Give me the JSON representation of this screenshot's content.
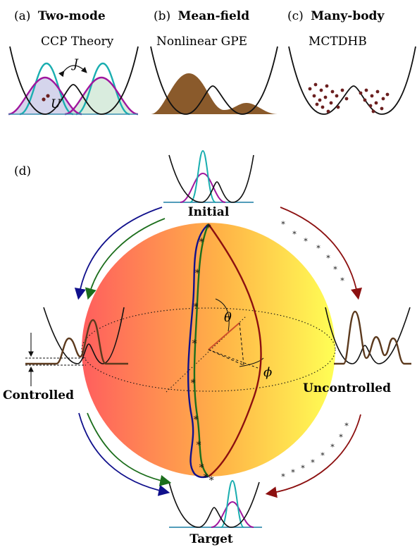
{
  "panels": {
    "a": {
      "tag": "(a)",
      "title": "Two-mode",
      "subtitle": "CCP Theory",
      "symbol_j": "J",
      "symbol_u": "U"
    },
    "b": {
      "tag": "(b)",
      "title": "Mean-field",
      "subtitle": "Nonlinear GPE"
    },
    "c": {
      "tag": "(c)",
      "title": "Many-body",
      "subtitle": "MCTDHB"
    },
    "d": {
      "tag": "(d)"
    }
  },
  "states": {
    "initial": "Initial",
    "target": "Target",
    "controlled": "Controlled",
    "uncontrolled": "Uncontrolled"
  },
  "angles": {
    "theta": "θ",
    "phi": "ϕ"
  },
  "colors": {
    "potential": "#111111",
    "cyan": "#1aaeb0",
    "magenta": "#a0169e",
    "brown": "#8a5a2b",
    "dark_brown": "#5c3a1e",
    "blue": "#10108c",
    "green": "#1c6e1c",
    "red": "#8c1010",
    "sphere_left": "#ff5e5e",
    "sphere_right": "#ffff55",
    "baseline": "#3a8fb0"
  }
}
